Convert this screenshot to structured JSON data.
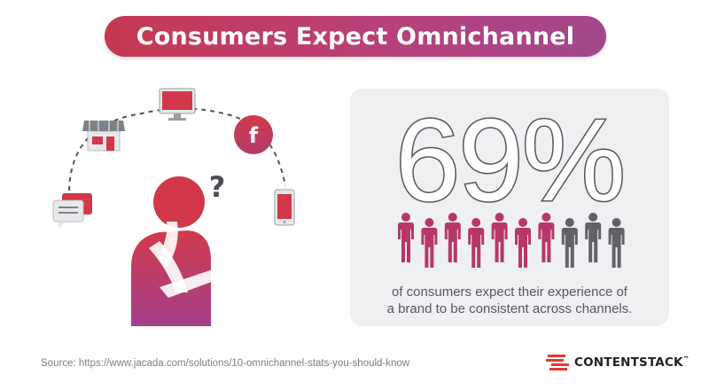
{
  "title": "Consumers Expect Omnichannel",
  "stat": {
    "value": "69%",
    "people_highlighted": 7,
    "people_total": 10,
    "caption_line1": "of consumers expect their experience of",
    "caption_line2": "a brand to be consistent across channels."
  },
  "illustration": {
    "question_mark": "?",
    "social_letter": "f",
    "channel_icons": [
      "chat-bubbles-icon",
      "store-icon",
      "monitor-icon",
      "facebook-icon",
      "smartphone-icon"
    ]
  },
  "source": "Source: https://www.jacada.com/solutions/10-omnichannel-stats-you-should-know",
  "brand": {
    "name": "CONTENTSTACK",
    "tm": "™"
  },
  "colors": {
    "accent_start": "#c63850",
    "accent_end": "#a2478e",
    "person_highlight": "#b8366a",
    "person_muted": "#5e6468",
    "card_bg": "#eef0f1",
    "brand_red": "#e03a2f"
  }
}
